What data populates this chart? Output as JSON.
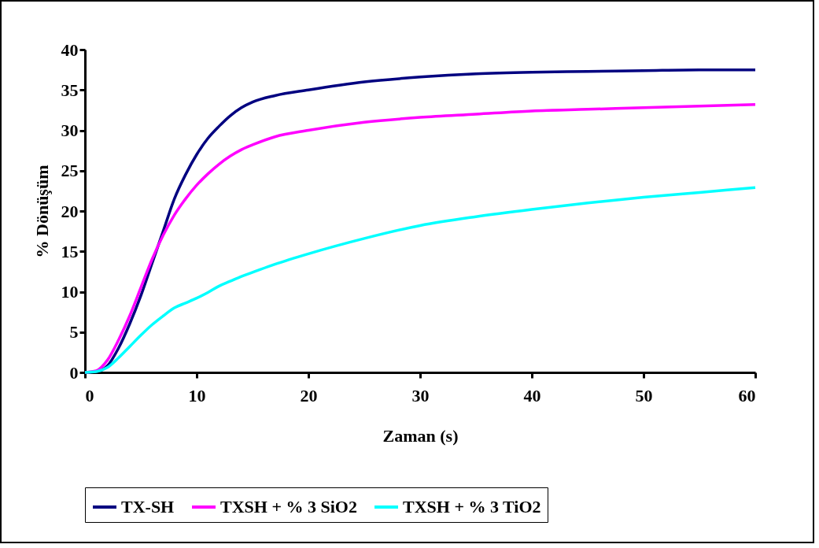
{
  "chart_data": {
    "type": "line",
    "xlabel": "Zaman (s)",
    "ylabel": "% Dönüşüm",
    "x": [
      0,
      1,
      2,
      3,
      4,
      5,
      6,
      7,
      8,
      9,
      10,
      11,
      12,
      13,
      14,
      15,
      17,
      20,
      25,
      30,
      35,
      40,
      45,
      50,
      55,
      60
    ],
    "xlim": [
      0,
      60
    ],
    "xticks": [
      0,
      10,
      20,
      30,
      40,
      50,
      60
    ],
    "ylim": [
      0,
      40
    ],
    "yticks": [
      0,
      5,
      10,
      15,
      20,
      25,
      30,
      35,
      40
    ],
    "grid": false,
    "legend": "bottom",
    "marker": "none",
    "line_style": "solid",
    "series": [
      {
        "name": "TX-SH",
        "color": "#000080",
        "values": [
          0,
          0.1,
          0.8,
          3,
          6,
          9.5,
          13.5,
          17.5,
          21.5,
          24.5,
          27,
          29,
          30.5,
          31.8,
          32.8,
          33.5,
          34.3,
          35,
          36,
          36.6,
          37,
          37.2,
          37.3,
          37.4,
          37.5,
          37.5
        ]
      },
      {
        "name": "TXSH + % 3 SiO2",
        "color": "#ff00ff",
        "values": [
          0,
          0.2,
          1.5,
          4,
          7,
          10.5,
          14,
          17,
          19.5,
          21.5,
          23.2,
          24.6,
          25.8,
          26.8,
          27.6,
          28.2,
          29.2,
          30,
          31,
          31.6,
          32,
          32.4,
          32.6,
          32.8,
          33,
          33.2
        ]
      },
      {
        "name": "TXSH + % 3 TiO2",
        "color": "#00ffff",
        "values": [
          0,
          0.1,
          0.6,
          1.8,
          3.2,
          4.6,
          5.9,
          7,
          8,
          8.6,
          9.2,
          9.9,
          10.7,
          11.3,
          11.9,
          12.4,
          13.4,
          14.7,
          16.6,
          18.2,
          19.3,
          20.2,
          21,
          21.7,
          22.3,
          22.9
        ]
      }
    ]
  }
}
